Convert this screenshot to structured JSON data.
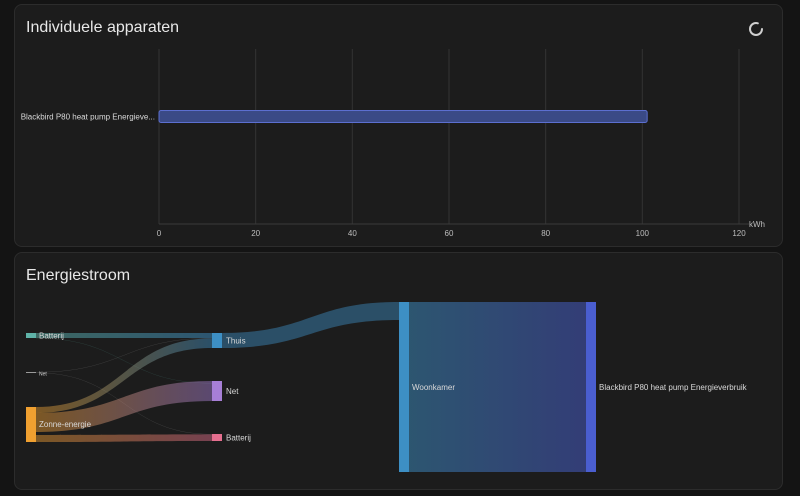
{
  "devices_card": {
    "title": "Individuele apparaten",
    "refresh_icon": "refresh-icon"
  },
  "flow_card": {
    "title": "Energiestroom"
  },
  "colors": {
    "background": "#141414",
    "card": "#1c1c1c",
    "bar_fill": "#3a4a86",
    "bar_stroke": "#5c6fd0",
    "battery_in": "#5fb3a8",
    "grid": "#9a9a9a",
    "solar": "#f0a030",
    "home": "#3d8fc4",
    "net_out": "#a77fd6",
    "battery_out": "#e56f8f",
    "room": "#3d8fc4",
    "device": "#4a5ed0"
  },
  "chart_data": [
    {
      "type": "bar",
      "orientation": "horizontal",
      "categories": [
        "Blackbird P80 heat pump Energieve..."
      ],
      "values": [
        101
      ],
      "xlabel": "kWh",
      "xlim": [
        0,
        120
      ],
      "xticks": [
        "0",
        "20",
        "40",
        "60",
        "80",
        "100",
        "120"
      ],
      "grid": true
    },
    {
      "type": "sankey",
      "nodes": [
        {
          "id": "batt_in",
          "label": "Batterij",
          "color": "#5fb3a8"
        },
        {
          "id": "net_in",
          "label": "Net",
          "color": "#9a9a9a"
        },
        {
          "id": "solar",
          "label": "Zonne-energie",
          "color": "#f0a030"
        },
        {
          "id": "home",
          "label": "Thuis",
          "color": "#3d8fc4"
        },
        {
          "id": "net_out",
          "label": "Net",
          "color": "#a77fd6"
        },
        {
          "id": "batt_out",
          "label": "Batterij",
          "color": "#e56f8f"
        },
        {
          "id": "room",
          "label": "Woonkamer",
          "color": "#3d8fc4"
        },
        {
          "id": "device",
          "label": "Blackbird P80 heat pump Energieverbruik",
          "color": "#4a5ed0"
        }
      ],
      "links": [
        {
          "source": "batt_in",
          "target": "home",
          "value": 1.5
        },
        {
          "source": "batt_in",
          "target": "net_out",
          "value": 0.1
        },
        {
          "source": "net_in",
          "target": "home",
          "value": 0.1
        },
        {
          "source": "net_in",
          "target": "batt_out",
          "value": 0.1
        },
        {
          "source": "solar",
          "target": "home",
          "value": 2.5
        },
        {
          "source": "solar",
          "target": "net_out",
          "value": 5.5
        },
        {
          "source": "solar",
          "target": "batt_out",
          "value": 1.5
        },
        {
          "source": "home",
          "target": "room",
          "value": 17
        },
        {
          "source": "room",
          "target": "device",
          "value": 17
        }
      ]
    }
  ]
}
